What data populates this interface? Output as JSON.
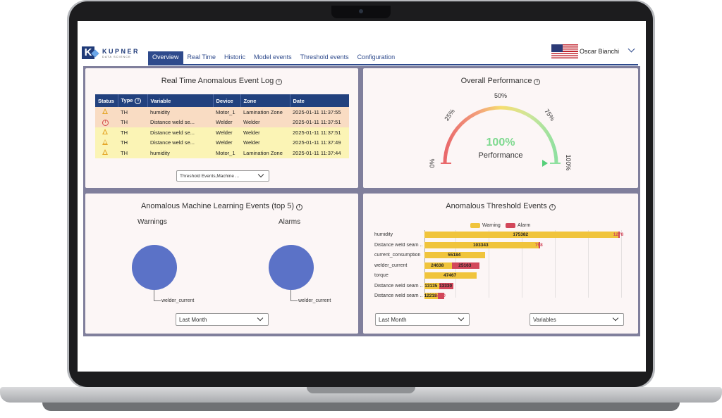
{
  "brand": {
    "name": "KUPNER",
    "tagline": "DATA SCIENCE"
  },
  "nav": {
    "tabs": [
      {
        "label": "Overview",
        "active": true
      },
      {
        "label": "Real Time",
        "active": false
      },
      {
        "label": "Historic",
        "active": false
      },
      {
        "label": "Model events",
        "active": false
      },
      {
        "label": "Threshold events",
        "active": false
      },
      {
        "label": "Configuration",
        "active": false
      }
    ]
  },
  "user": {
    "name": "Oscar Bianchi",
    "flag_icon": "us-flag-icon"
  },
  "event_log": {
    "title": "Real Time Anomalous Event Log",
    "columns": [
      "Status",
      "Type",
      "Variable",
      "Device",
      "Zone",
      "Date"
    ],
    "rows": [
      {
        "status": "warning",
        "type": "TH",
        "variable": "humidity",
        "device": "Motor_1",
        "zone": "Lamination Zone",
        "date": "2025-01-11 11:37:55"
      },
      {
        "status": "alarm",
        "type": "TH",
        "variable": "Distance weld se...",
        "device": "Welder",
        "zone": "Welder",
        "date": "2025-01-11 11:37:51"
      },
      {
        "status": "warning",
        "type": "TH",
        "variable": "Distance weld se...",
        "device": "Welder",
        "zone": "Welder",
        "date": "2025-01-11 11:37:51"
      },
      {
        "status": "warning",
        "type": "TH",
        "variable": "Distance weld se...",
        "device": "Welder",
        "zone": "Welder",
        "date": "2025-01-11 11:37:49"
      },
      {
        "status": "warning",
        "type": "TH",
        "variable": "humidity",
        "device": "Motor_1",
        "zone": "Lamination Zone",
        "date": "2025-01-11 11:37:44"
      }
    ],
    "filter_value": "Threshold Events,Machine ..."
  },
  "performance": {
    "title": "Overall Performance",
    "value": 100,
    "value_label": "100%",
    "caption": "Performance",
    "ticks": [
      "0%",
      "25%",
      "50%",
      "75%",
      "100%"
    ]
  },
  "ml_events": {
    "title": "Anomalous Machine Learning Events (top 5)",
    "warnings": {
      "title": "Warnings",
      "slices": [
        {
          "label": "welder_current",
          "share": 1.0
        }
      ]
    },
    "alarms": {
      "title": "Alarms",
      "slices": [
        {
          "label": "welder_current",
          "share": 1.0
        }
      ]
    },
    "period": "Last Month"
  },
  "threshold_events": {
    "title": "Anomalous Threshold Events",
    "period": "Last Month",
    "group_by": "Variables"
  },
  "chart_data": {
    "type": "bar",
    "orientation": "horizontal",
    "stacked": true,
    "legend_position": "top",
    "categories": [
      "humidity",
      "Distance weld seam ...",
      "current_consumption",
      "welder_current",
      "torque",
      "Distance weld seam ...",
      "Distance weld seam ..."
    ],
    "series": [
      {
        "name": "Warning",
        "color": "#f0c43c",
        "values": [
          175382,
          103343,
          55184,
          24638,
          47467,
          13135,
          12218
        ]
      },
      {
        "name": "Alarm",
        "color": "#d2475a",
        "values": [
          1278,
          798,
          0,
          25163,
          0,
          13330,
          5390
        ]
      }
    ],
    "value_labels": [
      [
        "175382",
        "1278"
      ],
      [
        "103343",
        "798"
      ],
      [
        "55184",
        ""
      ],
      [
        "24638",
        "25163"
      ],
      [
        "47467",
        ""
      ],
      [
        "13135",
        "13330"
      ],
      [
        "12218",
        "5390"
      ]
    ],
    "xlim": [
      0,
      180000
    ],
    "grid": true
  }
}
